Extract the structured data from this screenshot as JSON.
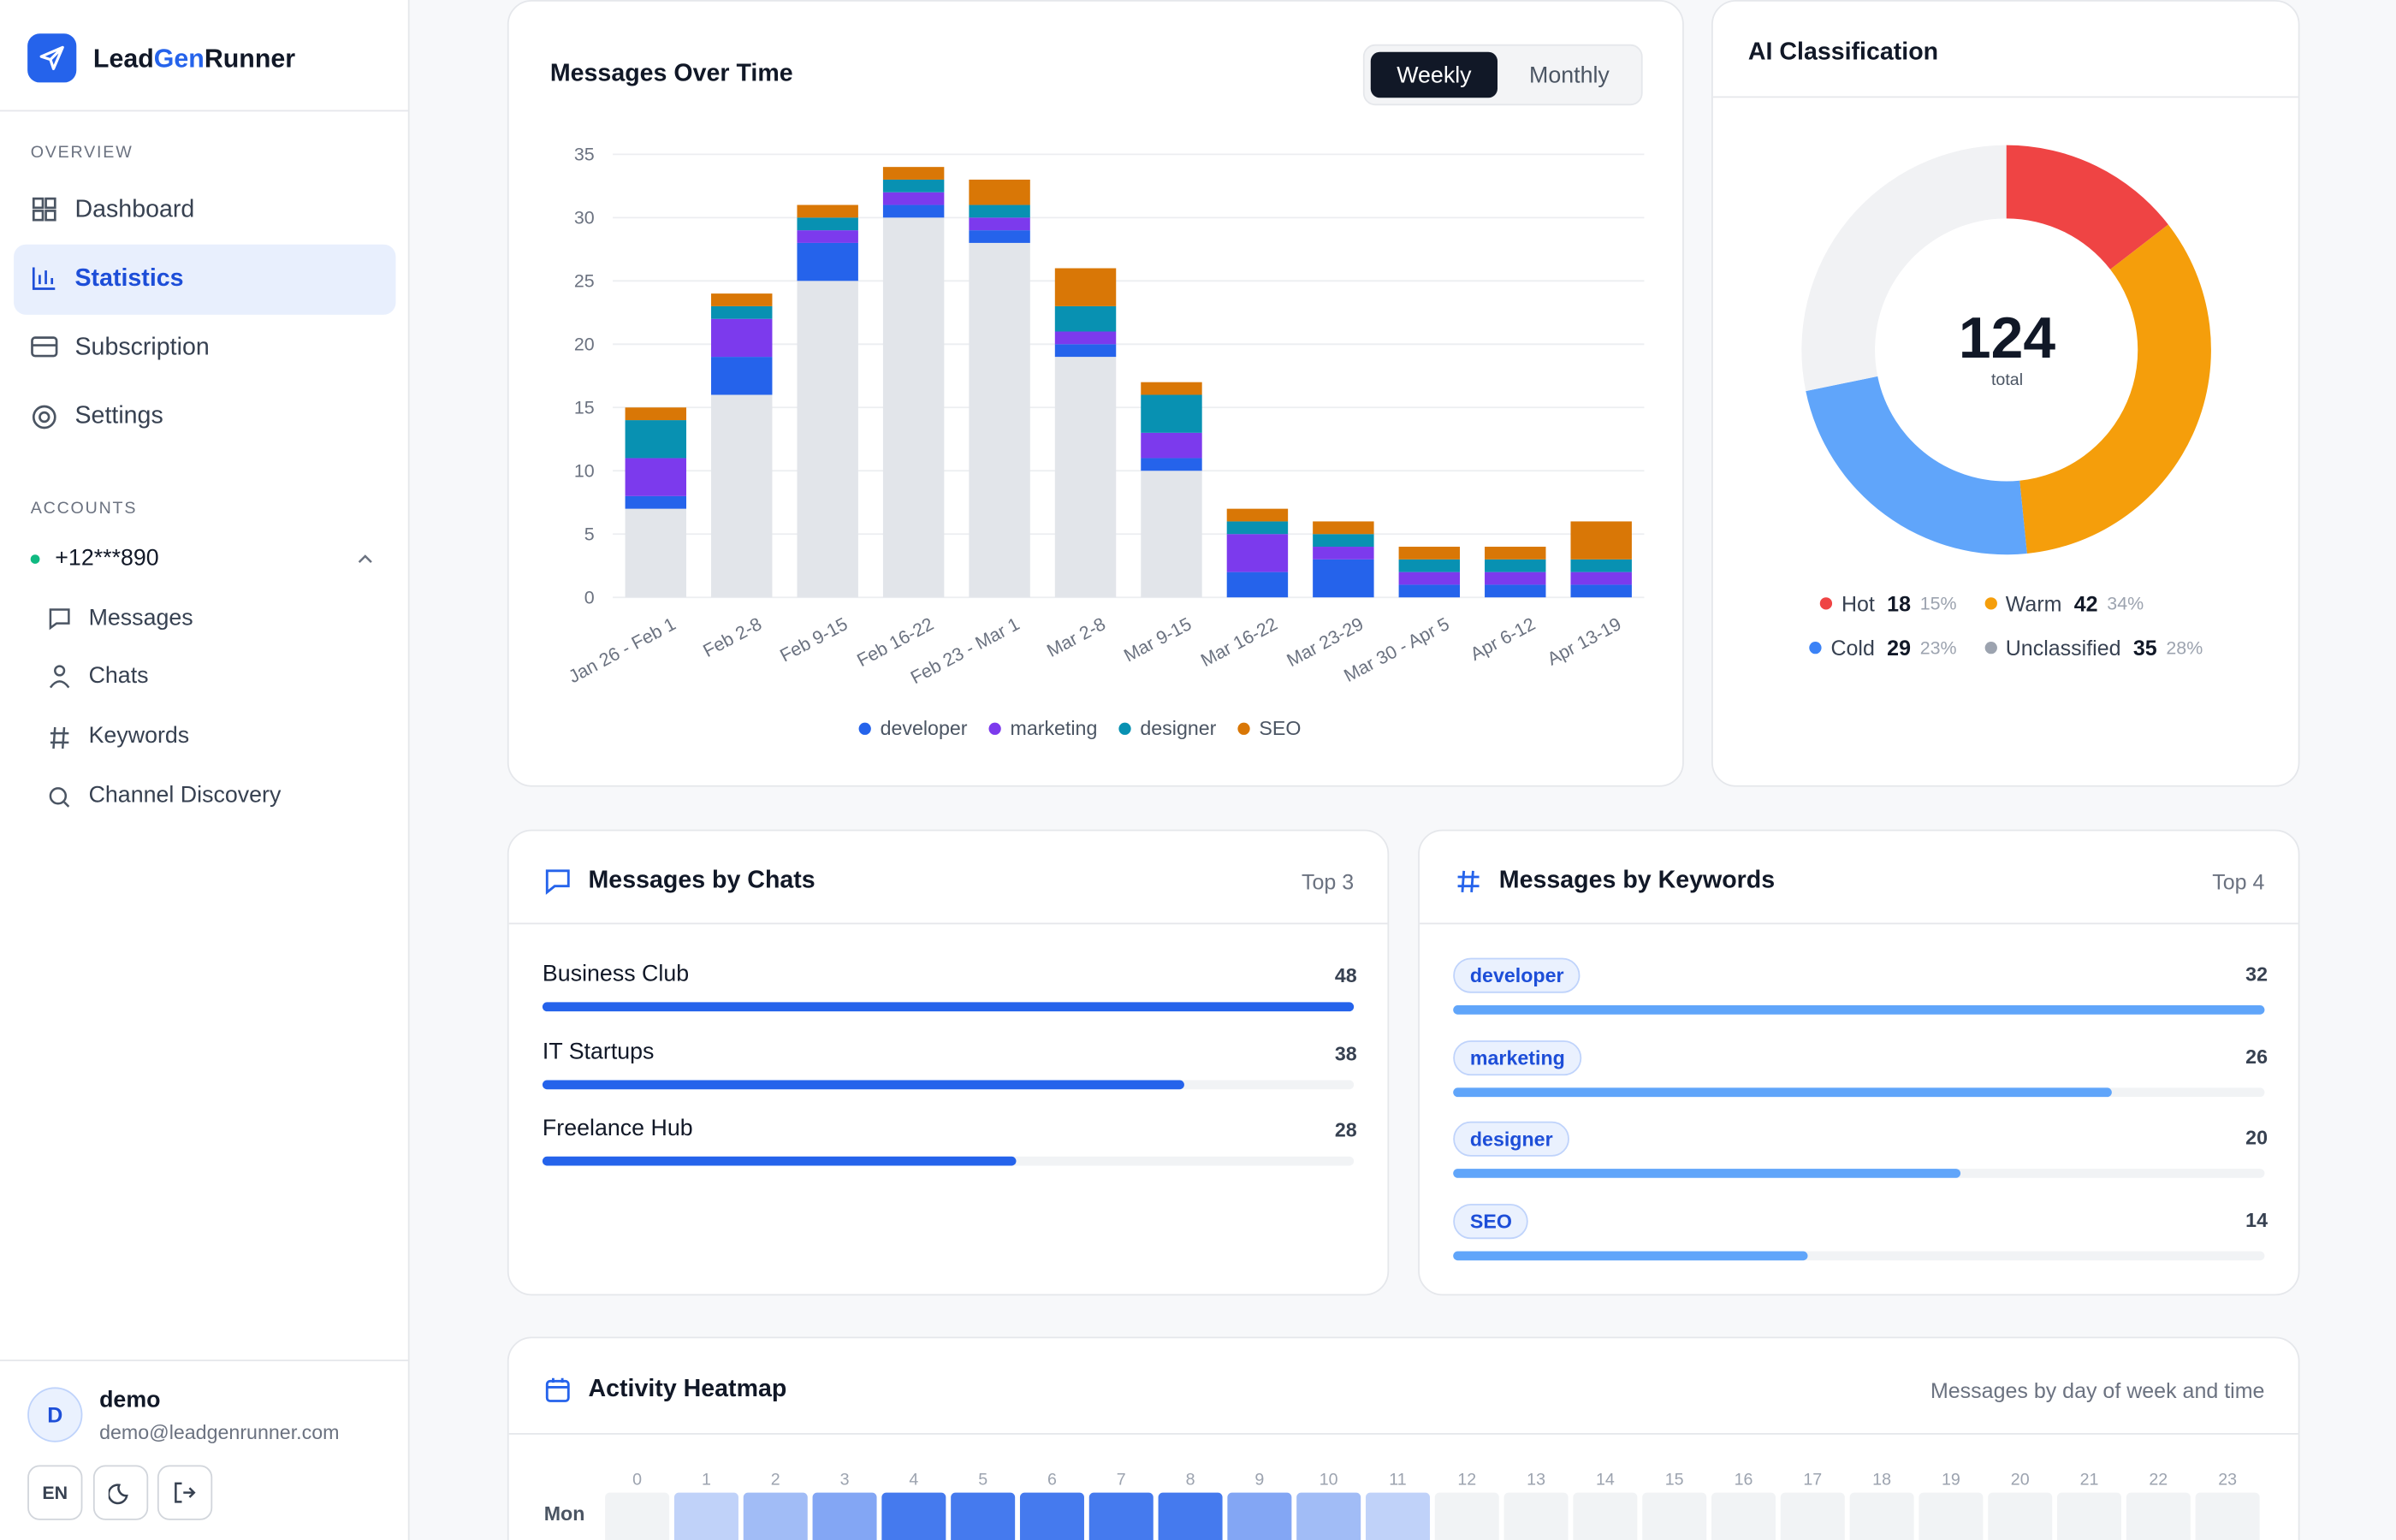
{
  "sidebar": {
    "brand": [
      "Lead",
      "Gen",
      "Runner"
    ],
    "overview_label": "OVERVIEW",
    "nav": [
      "Dashboard",
      "Statistics",
      "Subscription",
      "Settings"
    ],
    "accounts_label": "ACCOUNTS",
    "account": "+12***890",
    "account_nav": [
      "Messages",
      "Chats",
      "Keywords",
      "Channel Discovery"
    ],
    "user": {
      "initial": "D",
      "name": "demo",
      "email": "demo@leadgenrunner.com",
      "language": "EN"
    }
  },
  "chart_data": [
    {
      "type": "bar",
      "stacked": true,
      "title": "Messages Over Time",
      "toggle": [
        "Weekly",
        "Monthly"
      ],
      "categories": [
        "Jan 26 - Feb 1",
        "Feb 2-8",
        "Feb 9-15",
        "Feb 16-22",
        "Feb 23 - Mar 1",
        "Mar 2-8",
        "Mar 9-15",
        "Mar 16-22",
        "Mar 23-29",
        "Mar 30 - Apr 5",
        "Apr 6-12",
        "Apr 13-19"
      ],
      "series": [
        {
          "color": "#e2e5ea",
          "values": [
            7,
            16,
            25,
            30,
            28,
            19,
            10,
            0,
            0,
            0,
            0,
            0
          ]
        },
        {
          "name": "developer",
          "color": "#2563eb",
          "values": [
            1,
            3,
            3,
            1,
            1,
            1,
            1,
            2,
            3,
            1,
            1,
            1
          ]
        },
        {
          "name": "marketing",
          "color": "#7c3aed",
          "values": [
            3,
            3,
            1,
            1,
            1,
            1,
            2,
            3,
            1,
            1,
            1,
            1
          ]
        },
        {
          "name": "designer",
          "color": "#0891b2",
          "values": [
            3,
            1,
            1,
            1,
            1,
            2,
            3,
            1,
            1,
            1,
            1,
            1
          ]
        },
        {
          "name": "SEO",
          "color": "#d97706",
          "values": [
            1,
            1,
            1,
            1,
            2,
            3,
            1,
            1,
            1,
            1,
            1,
            3
          ]
        }
      ],
      "ylim": [
        0,
        35
      ],
      "yticks": [
        0,
        5,
        10,
        15,
        20,
        25,
        30,
        35
      ],
      "grid": true
    },
    {
      "type": "pie",
      "donut": true,
      "title": "AI Classification",
      "total": 124,
      "total_label": "total",
      "categories": [
        "Hot",
        "Warm",
        "Cold",
        "Unclassified"
      ],
      "values": [
        18,
        42,
        29,
        35
      ],
      "percent_labels": [
        "15%",
        "34%",
        "23%",
        "28%"
      ],
      "colors": [
        "#ef4444",
        "#f59e0b",
        "#60a5fa",
        "#f1f2f4"
      ],
      "legend_colors": [
        "#ef4444",
        "#f59e0b",
        "#3b82f6",
        "#9ca3af"
      ]
    },
    {
      "type": "bar",
      "orientation": "horizontal",
      "title": "Messages by Chats",
      "subtitle": "Top 3",
      "categories": [
        "Business Club",
        "IT Startups",
        "Freelance Hub"
      ],
      "values": [
        48,
        38,
        28
      ],
      "color": "#2563eb"
    },
    {
      "type": "bar",
      "orientation": "horizontal",
      "title": "Messages by Keywords",
      "subtitle": "Top 4",
      "categories": [
        "developer",
        "marketing",
        "designer",
        "SEO"
      ],
      "values": [
        32,
        26,
        20,
        14
      ],
      "color": "#60a5fa"
    },
    {
      "type": "heatmap",
      "title": "Activity Heatmap",
      "subtitle": "Messages by day of week and time",
      "x": [
        0,
        1,
        2,
        3,
        4,
        5,
        6,
        7,
        8,
        9,
        10,
        11,
        12,
        13,
        14,
        15,
        16,
        17,
        18,
        19,
        20,
        21,
        22,
        23
      ],
      "rows": [
        "Mon"
      ],
      "values": [
        [
          0,
          1,
          2,
          3,
          5,
          5,
          5,
          5,
          5,
          3,
          2,
          1,
          0,
          0,
          0,
          0,
          0,
          0,
          0,
          0,
          0,
          0,
          0,
          0
        ]
      ],
      "color": "#2563eb"
    }
  ]
}
